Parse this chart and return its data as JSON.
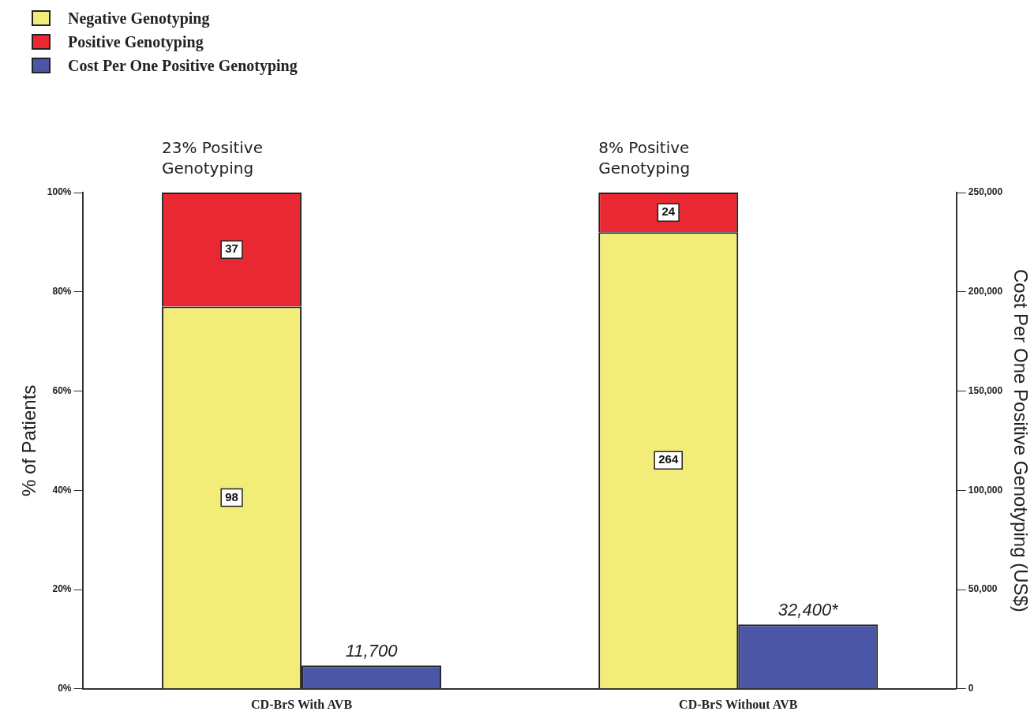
{
  "chart_data": {
    "type": "bar",
    "stacked": true,
    "categories": [
      "CD-BrS With AVB",
      "CD-BrS Without AVB"
    ],
    "ylabel": "% of Patients",
    "y2label": "Cost Per One Positive Genotyping (US$)",
    "ylim": [
      0,
      100
    ],
    "yticks": [
      {
        "value": 0,
        "label": "0%"
      },
      {
        "value": 20,
        "label": "20%"
      },
      {
        "value": 40,
        "label": "40%"
      },
      {
        "value": 60,
        "label": "60%"
      },
      {
        "value": 80,
        "label": "80%"
      },
      {
        "value": 100,
        "label": "100%"
      }
    ],
    "y2lim": [
      0,
      250000
    ],
    "y2ticks": [
      0,
      {
        "value": 50000,
        "label": "50,000"
      },
      {
        "value": 100000,
        "label": "100,000"
      },
      {
        "value": 150000,
        "label": "150,000"
      },
      {
        "value": 200000,
        "label": "200,000"
      },
      {
        "value": 250000,
        "label": "250,000"
      }
    ],
    "series": [
      {
        "name": "Negative Genotyping",
        "color": "#f2ec78",
        "values": [
          77,
          92
        ]
      },
      {
        "name": "Positive Genotyping",
        "color": "#ea2833",
        "values": [
          23,
          8
        ]
      },
      {
        "name": "Cost Per One Positive Genotyping",
        "color": "#4b57a6",
        "axis": "y2",
        "values": [
          11700,
          32400
        ],
        "value_labels": [
          "11,700",
          "32,400*"
        ]
      }
    ],
    "annotations": [
      "23% Positive Genotyping",
      "8% Positive Genotyping",
      "98",
      "37",
      "264",
      "24"
    ],
    "grid": false,
    "legend": "top left"
  }
}
